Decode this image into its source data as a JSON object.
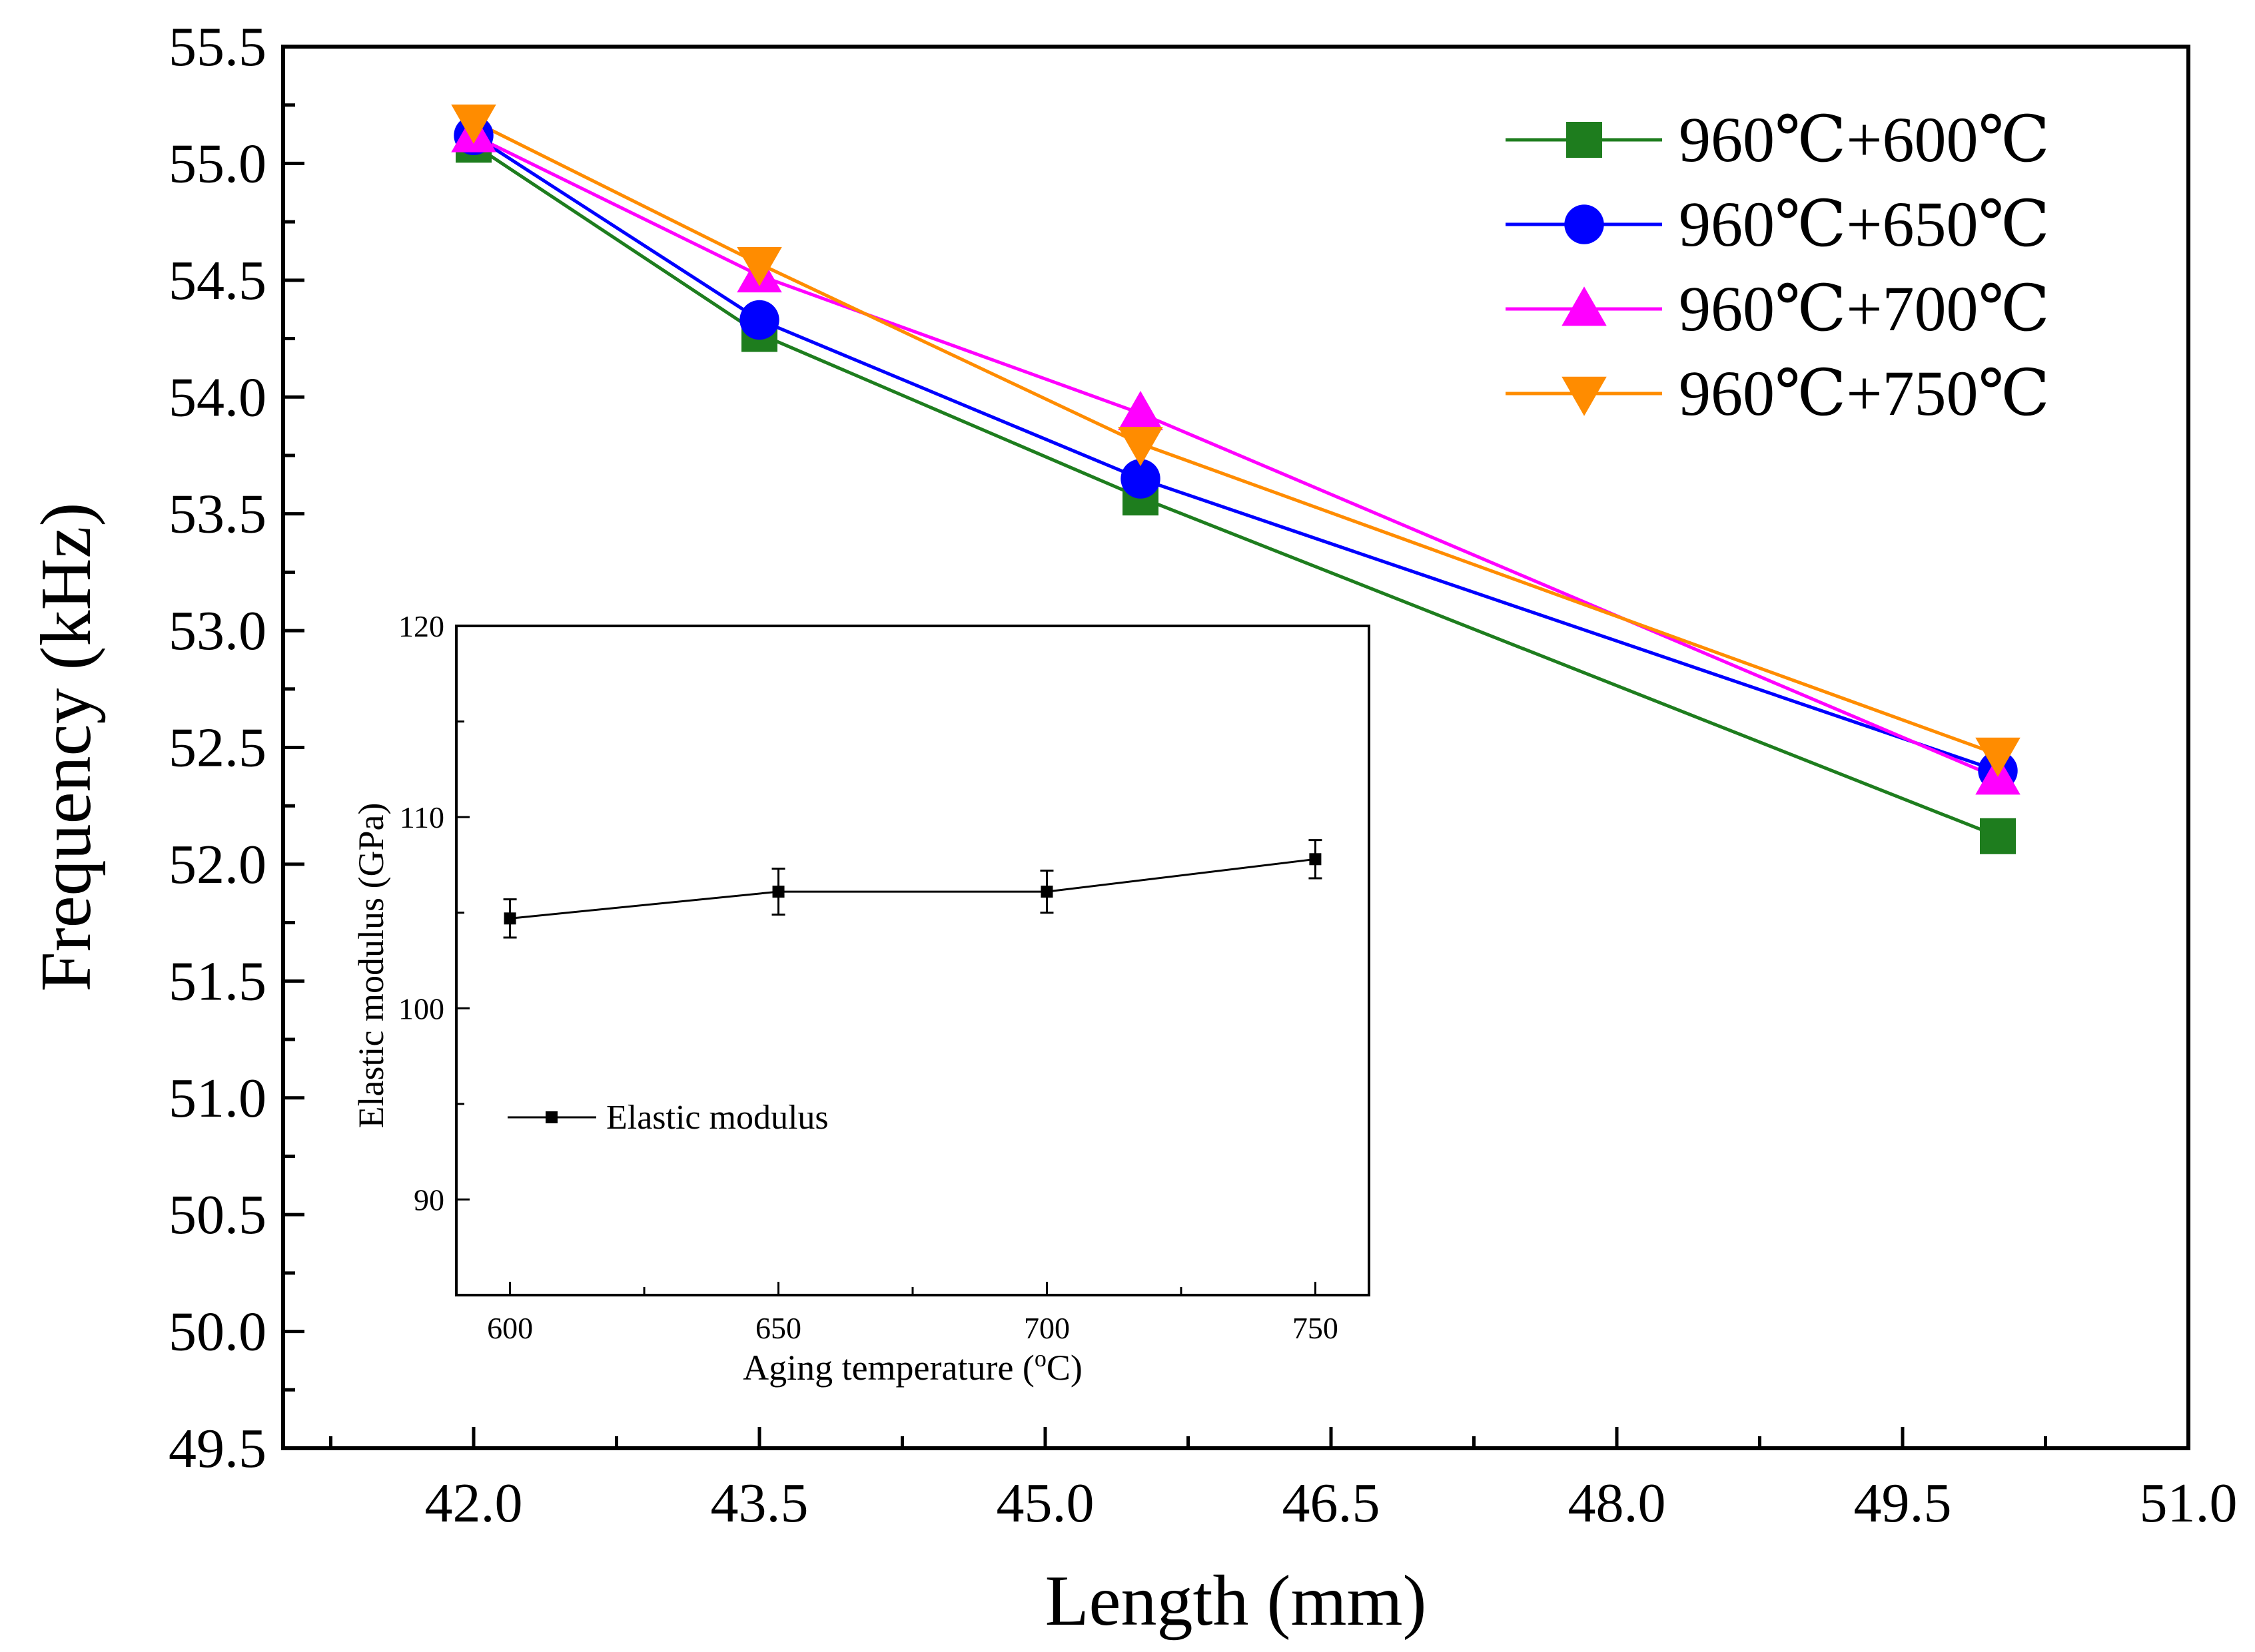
{
  "chart_data": [
    {
      "type": "line",
      "xlabel": "Length (mm)",
      "ylabel": "Frequency (kHz)",
      "xlim": [
        41.0,
        51.0
      ],
      "ylim": [
        49.5,
        55.5
      ],
      "x_major_ticks": [
        42.0,
        43.5,
        45.0,
        46.5,
        48.0,
        49.5,
        51.0
      ],
      "x_tick_labels": [
        "42.0",
        "43.5",
        "45.0",
        "46.5",
        "48.0",
        "49.5",
        "51.0"
      ],
      "y_major_ticks": [
        49.5,
        50.0,
        50.5,
        51.0,
        51.5,
        52.0,
        52.5,
        53.0,
        53.5,
        54.0,
        54.5,
        55.0,
        55.5
      ],
      "y_tick_labels": [
        "49.5",
        "50.0",
        "50.5",
        "51.0",
        "51.5",
        "52.0",
        "52.5",
        "53.0",
        "53.5",
        "54.0",
        "54.5",
        "55.0",
        "55.5"
      ],
      "x": [
        42.0,
        43.5,
        45.5,
        50.0
      ],
      "legend_position": "top-right",
      "series": [
        {
          "name": "960℃+600℃",
          "color": "#1e7d1e",
          "marker": "square",
          "values": [
            55.08,
            54.27,
            53.57,
            52.12
          ]
        },
        {
          "name": "960℃+650℃",
          "color": "#0000ff",
          "marker": "circle",
          "values": [
            55.12,
            54.33,
            53.65,
            52.4
          ]
        },
        {
          "name": "960℃+700℃",
          "color": "#ff00ff",
          "marker": "triangle-up",
          "values": [
            55.12,
            54.52,
            53.93,
            52.37
          ]
        },
        {
          "name": "960℃+750℃",
          "color": "#ff8c00",
          "marker": "triangle-down",
          "values": [
            55.18,
            54.57,
            53.8,
            52.47
          ]
        }
      ]
    },
    {
      "type": "line",
      "role": "inset",
      "xlabel": "Aging temperature (oC)",
      "xlabel_parts": [
        "Aging temperature (",
        "o",
        "C)"
      ],
      "ylabel": "Elastic modulus (GPa)",
      "xlim": [
        590,
        760
      ],
      "ylim": [
        85,
        120
      ],
      "x_major_ticks": [
        600,
        650,
        700,
        750
      ],
      "x_tick_labels": [
        "600",
        "650",
        "700",
        "750"
      ],
      "y_major_ticks": [
        90,
        100,
        110,
        120
      ],
      "y_tick_labels": [
        "90",
        "100",
        "110",
        "120"
      ],
      "legend_position": "middle-left",
      "series": [
        {
          "name": "Elastic modulus",
          "color": "#000000",
          "marker": "square",
          "x": [
            600,
            650,
            700,
            750
          ],
          "values": [
            104.7,
            106.1,
            106.1,
            107.8
          ],
          "errors": [
            1.0,
            1.2,
            1.1,
            1.0
          ]
        }
      ]
    }
  ]
}
